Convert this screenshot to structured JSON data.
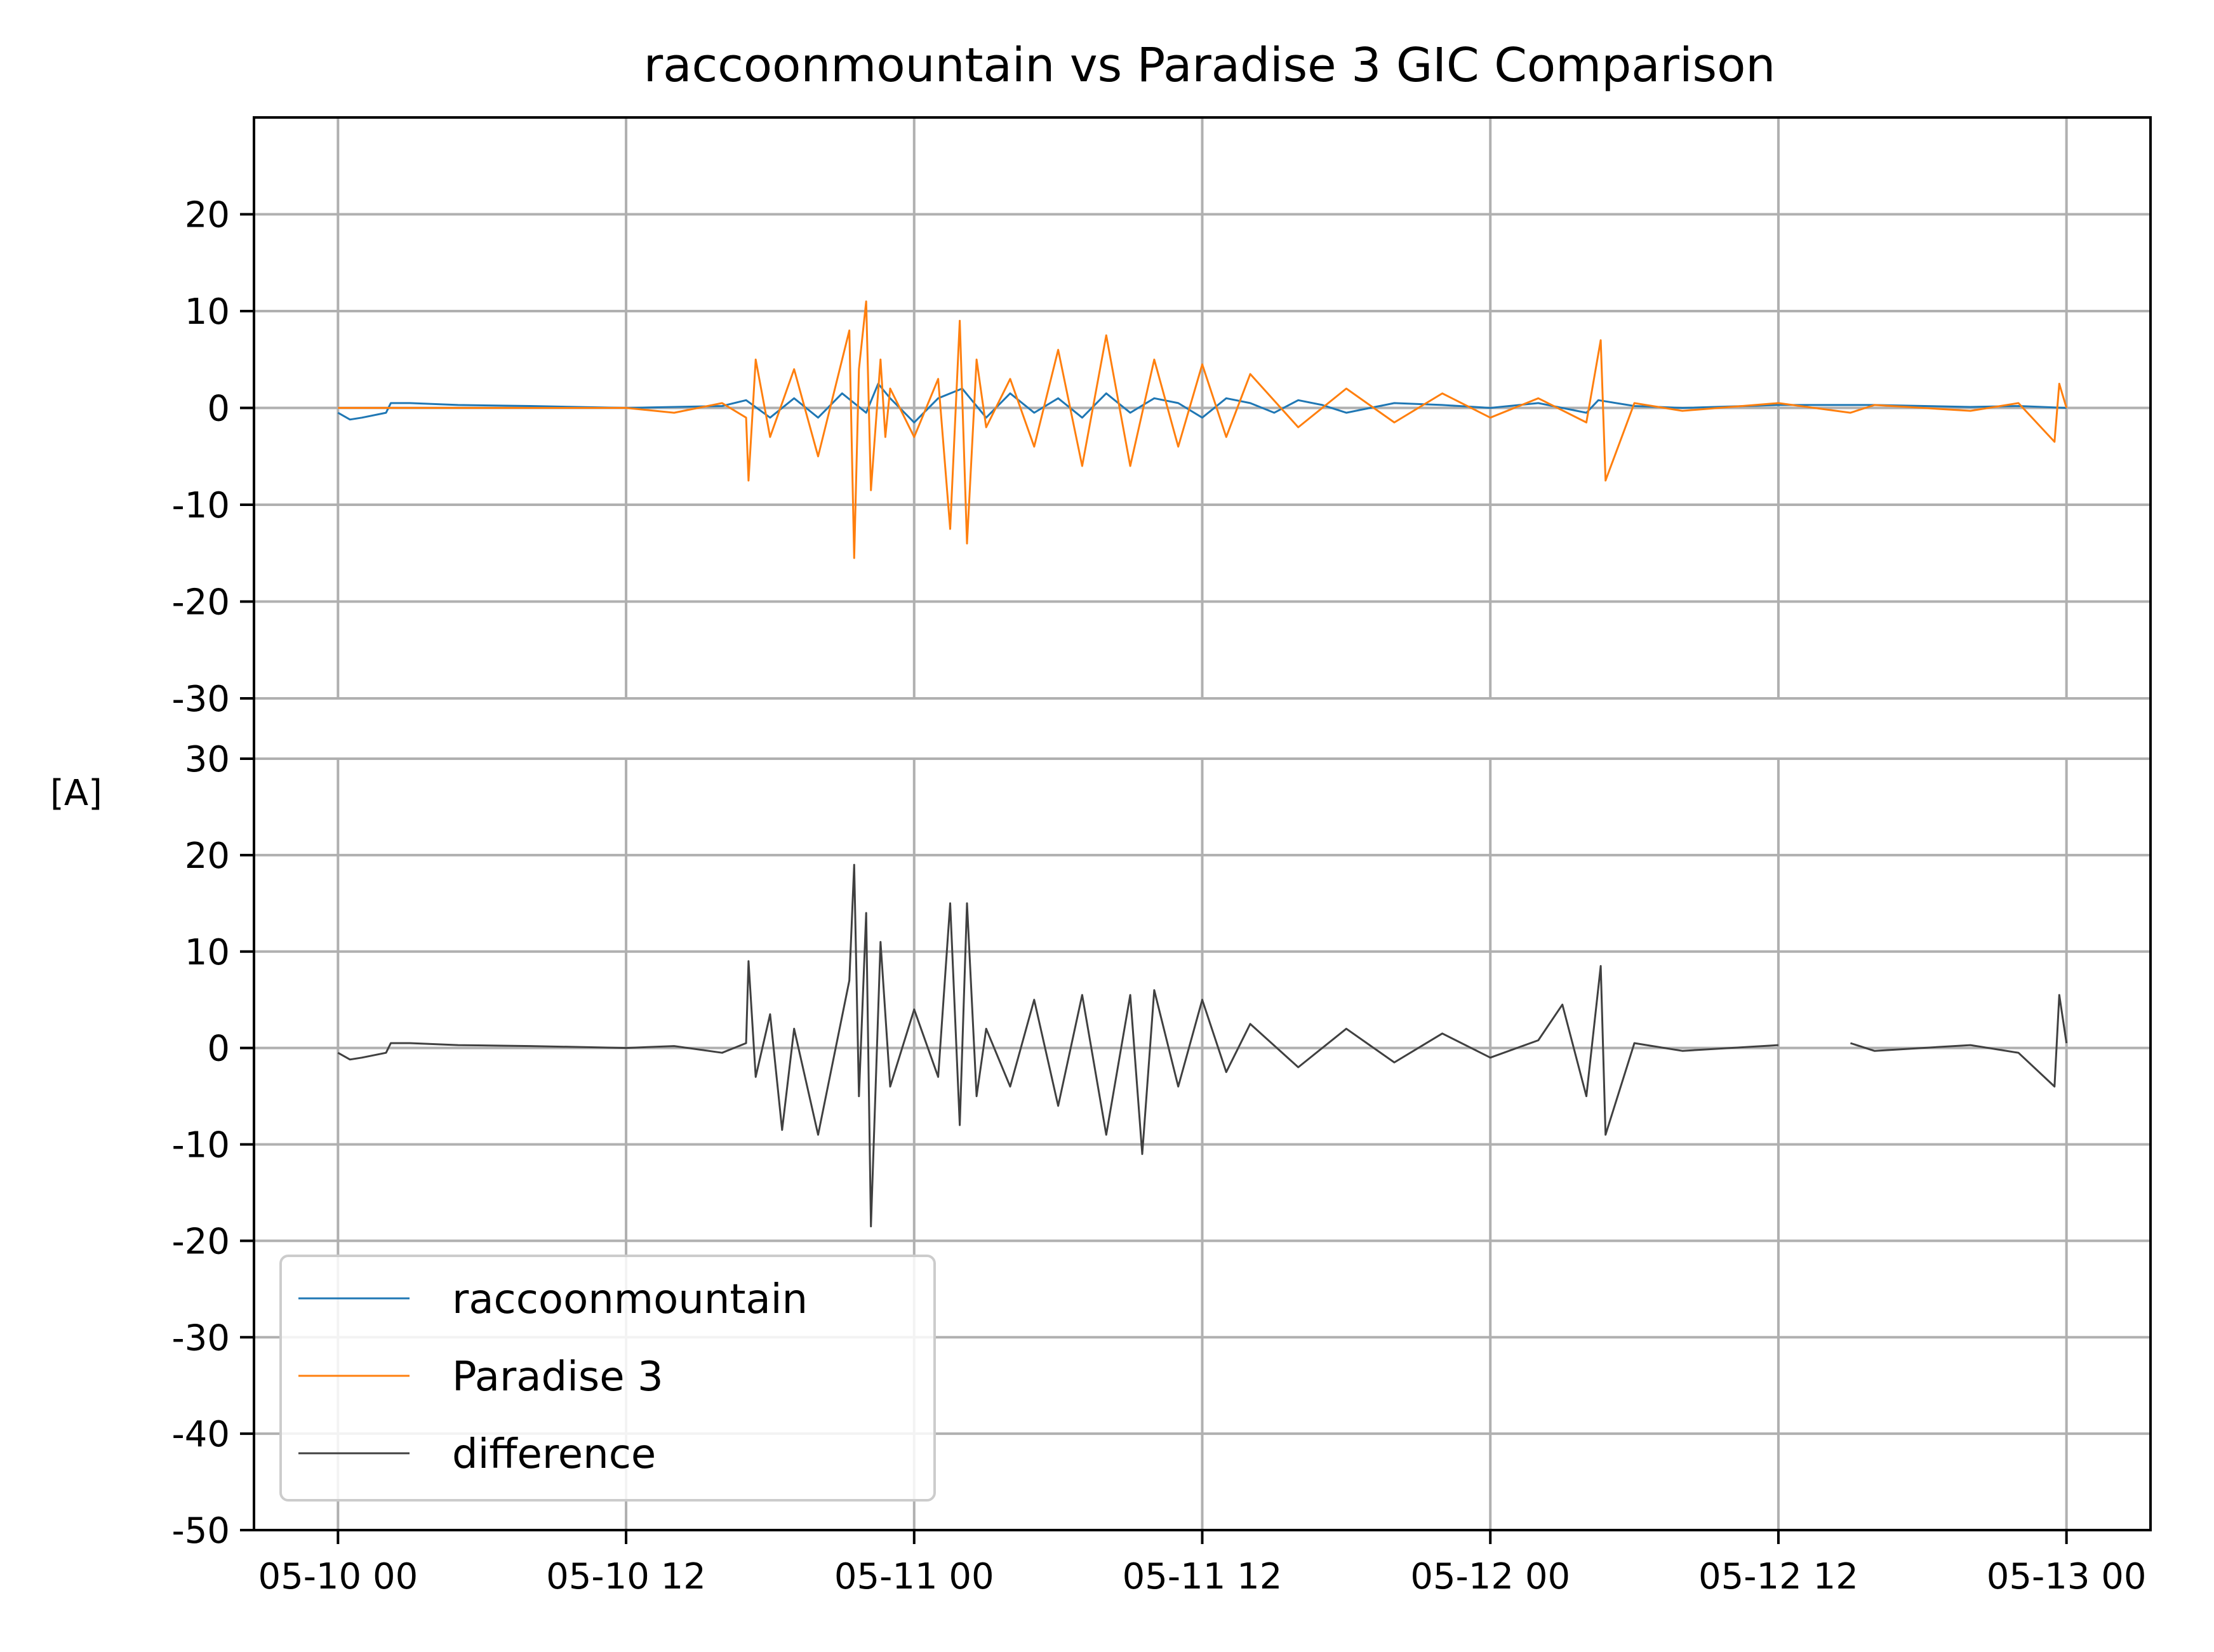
{
  "chart_data": {
    "type": "line",
    "title": "raccoonmountain vs Paradise 3 GIC Comparison",
    "ylabel": "[A]",
    "x_ticks": [
      "05-10 00",
      "05-10 12",
      "05-11 00",
      "05-11 12",
      "05-12 00",
      "05-12 12",
      "05-13 00"
    ],
    "x_range_hours": [
      -3.5,
      75.5
    ],
    "grid": true,
    "legend_placement": "lower-left",
    "colors": {
      "raccoonmountain": "#1f77b4",
      "paradise": "#ff7f0e",
      "difference": "#404040"
    },
    "panels": [
      {
        "ylim": [
          -30,
          30
        ],
        "yticks": [
          "20",
          "10",
          "0",
          "-10",
          "-20",
          "-30"
        ],
        "ytick_values": [
          20,
          10,
          0,
          -10,
          -20,
          -30
        ],
        "series": [
          {
            "name": "raccoonmountain",
            "color": "#1f77b4",
            "x_hours": [
              0,
              0.5,
              1,
              2,
              2.2,
              3,
              5,
              8,
              12,
              14,
              16,
              17,
              18,
              19,
              20,
              21,
              22,
              22.5,
              23,
              24,
              25,
              26,
              27,
              28,
              29,
              30,
              31,
              32,
              33,
              34,
              35,
              36,
              37,
              38,
              39,
              40,
              41,
              42,
              44,
              46,
              48,
              50,
              52,
              52.5,
              54,
              56,
              60,
              64,
              68,
              70,
              72
            ],
            "values": [
              -0.5,
              -1.2,
              -1.0,
              -0.5,
              0.5,
              0.5,
              0.3,
              0.2,
              0,
              0.1,
              0.2,
              0.8,
              -1.0,
              1.0,
              -1.0,
              1.5,
              -0.5,
              2.5,
              1.0,
              -1.5,
              1.0,
              2.0,
              -1.0,
              1.5,
              -0.5,
              1.0,
              -1.0,
              1.5,
              -0.5,
              1.0,
              0.5,
              -1.0,
              1.0,
              0.5,
              -0.5,
              0.8,
              0.3,
              -0.5,
              0.5,
              0.3,
              0,
              0.5,
              -0.5,
              0.8,
              0.2,
              0,
              0.3,
              0.3,
              0.1,
              0.2,
              0
            ]
          },
          {
            "name": "Paradise 3",
            "color": "#ff7f0e",
            "x_hours": [
              0,
              12,
              14,
              16,
              17,
              17.1,
              17.4,
              18,
              19,
              20,
              21.3,
              21.5,
              21.7,
              22.0,
              22.2,
              22.6,
              22.8,
              23.0,
              24,
              25,
              25.5,
              25.9,
              26.2,
              26.6,
              27,
              28,
              29,
              30,
              31,
              32,
              33,
              34,
              35,
              36,
              37,
              38,
              40,
              42,
              44,
              46,
              48,
              50,
              52,
              52.6,
              52.8,
              54,
              56,
              60,
              63,
              64,
              68,
              70,
              71.5,
              71.7,
              72
            ],
            "values": [
              0,
              0,
              -0.5,
              0.5,
              -1.0,
              -7.5,
              5.0,
              -3.0,
              4.0,
              -5.0,
              8.0,
              -15.5,
              4.0,
              11.0,
              -8.5,
              5.0,
              -3.0,
              2.0,
              -3.0,
              3.0,
              -12.5,
              9.0,
              -14.0,
              5.0,
              -2.0,
              3.0,
              -4.0,
              6.0,
              -6.0,
              7.5,
              -6.0,
              5.0,
              -4.0,
              4.5,
              -3.0,
              3.5,
              -2.0,
              2.0,
              -1.5,
              1.5,
              -1.0,
              1.0,
              -1.5,
              7.0,
              -7.5,
              0.5,
              -0.3,
              0.5,
              -0.5,
              0.3,
              -0.3,
              0.5,
              -3.5,
              2.5,
              0
            ]
          }
        ]
      },
      {
        "ylim": [
          -50,
          30
        ],
        "yticks": [
          "30",
          "20",
          "10",
          "0",
          "-10",
          "-20",
          "-30",
          "-40",
          "-50"
        ],
        "ytick_values": [
          30,
          20,
          10,
          0,
          -10,
          -20,
          -30,
          -40,
          -50
        ],
        "series": [
          {
            "name": "difference",
            "color": "#404040",
            "x_hours": [
              0,
              0.5,
              1,
              2,
              2.2,
              3,
              5,
              8,
              12,
              14,
              16,
              17,
              17.1,
              17.4,
              18,
              18.5,
              19,
              20,
              21.3,
              21.5,
              21.7,
              22.0,
              22.2,
              22.6,
              23,
              24,
              25,
              25.5,
              25.9,
              26.2,
              26.6,
              27,
              28,
              29,
              30,
              31,
              32,
              33,
              33.5,
              34,
              35,
              36,
              37,
              38,
              40,
              42,
              44,
              46,
              48,
              50,
              51,
              52,
              52.6,
              52.8,
              54,
              56,
              60,
              61.5,
              63,
              64,
              68,
              70,
              71.5,
              71.7,
              72
            ],
            "values": [
              -0.5,
              -1.2,
              -1.0,
              -0.5,
              0.5,
              0.5,
              0.3,
              0.2,
              0,
              0.2,
              -0.5,
              0.5,
              9.0,
              -3.0,
              3.5,
              -8.5,
              2.0,
              -9.0,
              7.0,
              19.0,
              -5.0,
              14.0,
              -18.5,
              11.0,
              -4.0,
              4.0,
              -3.0,
              15.0,
              -8.0,
              15.0,
              -5.0,
              2.0,
              -4.0,
              5.0,
              -6.0,
              5.5,
              -9.0,
              5.5,
              -11.0,
              6.0,
              -4.0,
              5.0,
              -2.5,
              2.5,
              -2.0,
              2.0,
              -1.5,
              1.5,
              -1.0,
              0.8,
              4.5,
              -5.0,
              8.5,
              -9.0,
              0.5,
              -0.3,
              0.3,
              null,
              0.5,
              -0.3,
              0.3,
              -0.5,
              -4.0,
              5.5,
              0.5
            ]
          }
        ]
      }
    ],
    "legend": [
      "raccoonmountain",
      "Paradise 3",
      "difference"
    ]
  }
}
